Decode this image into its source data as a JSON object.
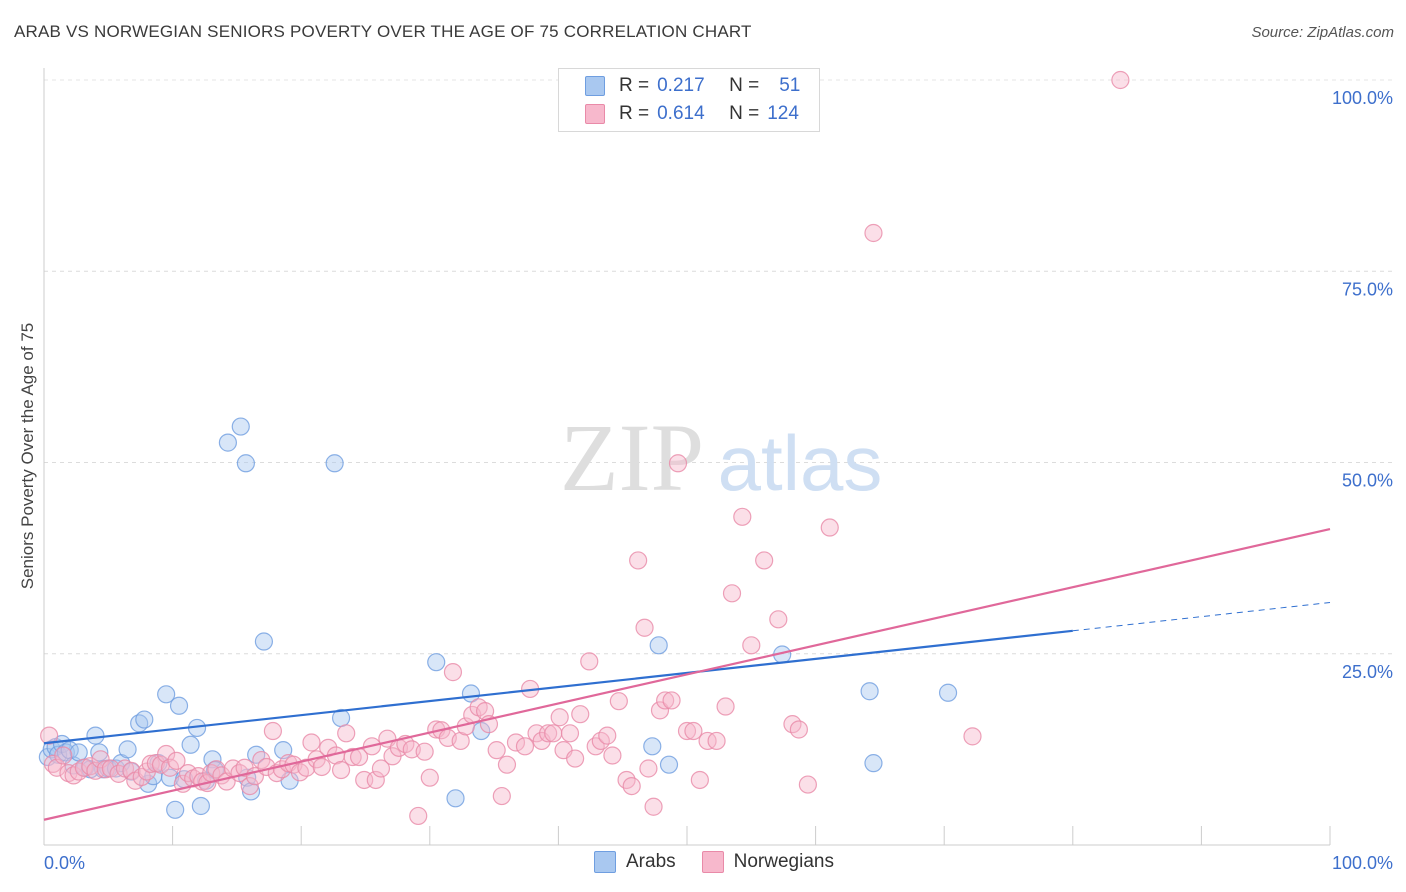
{
  "header": {
    "title": "ARAB VS NORWEGIAN SENIORS POVERTY OVER THE AGE OF 75 CORRELATION CHART",
    "source": "Source: ZipAtlas.com"
  },
  "watermark": {
    "zip": "ZIP",
    "atlas": "atlas"
  },
  "legend": {
    "rows": [
      {
        "r_label": "R =",
        "r_value": "0.217",
        "n_label": "N =",
        "n_value": "51",
        "color": "#a9c8f0",
        "stroke": "#6f9ee0"
      },
      {
        "r_label": "R =",
        "r_value": "0.614",
        "n_label": "N =",
        "n_value": "124",
        "color": "#f7b8cc",
        "stroke": "#e98aa8"
      }
    ]
  },
  "bottom_legend": [
    {
      "label": "Arabs",
      "color": "#a9c8f0",
      "stroke": "#6f9ee0"
    },
    {
      "label": "Norwegians",
      "color": "#f7b8cc",
      "stroke": "#e98aa8"
    }
  ],
  "chart_data": {
    "type": "scatter",
    "title": "ARAB VS NORWEGIAN SENIORS POVERTY OVER THE AGE OF 75 CORRELATION CHART",
    "xlabel": "",
    "ylabel": "Seniors Poverty Over the Age of 75",
    "xlim": [
      0,
      100
    ],
    "ylim": [
      0,
      100
    ],
    "x_tick_labels": [
      "0.0%",
      "100.0%"
    ],
    "y_tick_labels": [
      {
        "value": 25,
        "label": "25.0%"
      },
      {
        "value": 50,
        "label": "50.0%"
      },
      {
        "value": 75,
        "label": "75.0%"
      },
      {
        "value": 100,
        "label": "100.0%"
      }
    ],
    "grid": true,
    "legend_position": "top-center",
    "series": [
      {
        "name": "Arabs",
        "color": "#6f9ee0",
        "fill": "#a9c8f0",
        "trend": {
          "x0": 0,
          "y0": 13.3,
          "x1": 80,
          "y1": 28.0,
          "dash_to_x": 100,
          "dash_to_y": 31.7
        },
        "points": [
          [
            0.3,
            11.5
          ],
          [
            0.6,
            12.5
          ],
          [
            0.9,
            12.8
          ],
          [
            1.1,
            11.8
          ],
          [
            1.4,
            13.2
          ],
          [
            1.7,
            12.1
          ],
          [
            2.0,
            12.4
          ],
          [
            2.3,
            10.4
          ],
          [
            2.7,
            12.1
          ],
          [
            3.2,
            10.1
          ],
          [
            3.6,
            9.9
          ],
          [
            4.0,
            14.3
          ],
          [
            4.3,
            12.1
          ],
          [
            4.6,
            9.9
          ],
          [
            5.0,
            10.0
          ],
          [
            5.6,
            10.0
          ],
          [
            6.0,
            10.7
          ],
          [
            6.5,
            12.5
          ],
          [
            6.8,
            9.6
          ],
          [
            7.4,
            15.9
          ],
          [
            7.8,
            16.4
          ],
          [
            8.1,
            8.0
          ],
          [
            8.5,
            9.0
          ],
          [
            8.9,
            10.7
          ],
          [
            9.5,
            19.7
          ],
          [
            9.8,
            8.8
          ],
          [
            10.2,
            4.6
          ],
          [
            10.5,
            18.2
          ],
          [
            10.9,
            8.6
          ],
          [
            11.4,
            13.1
          ],
          [
            11.9,
            15.3
          ],
          [
            12.2,
            5.1
          ],
          [
            12.6,
            8.4
          ],
          [
            13.1,
            11.2
          ],
          [
            13.3,
            9.8
          ],
          [
            14.3,
            52.6
          ],
          [
            15.3,
            54.7
          ],
          [
            15.7,
            49.9
          ],
          [
            15.8,
            8.8
          ],
          [
            16.1,
            7.0
          ],
          [
            16.5,
            11.8
          ],
          [
            17.1,
            26.6
          ],
          [
            18.6,
            12.4
          ],
          [
            19.1,
            8.4
          ],
          [
            22.6,
            49.9
          ],
          [
            23.1,
            16.6
          ],
          [
            30.5,
            23.9
          ],
          [
            32.0,
            6.1
          ],
          [
            33.2,
            19.8
          ],
          [
            34.0,
            14.9
          ],
          [
            47.3,
            12.9
          ],
          [
            47.8,
            26.1
          ],
          [
            48.6,
            10.5
          ],
          [
            57.4,
            24.9
          ],
          [
            64.2,
            20.1
          ],
          [
            64.5,
            10.7
          ],
          [
            70.3,
            19.9
          ]
        ]
      },
      {
        "name": "Norwegians",
        "color": "#e98aa8",
        "fill": "#f7b8cc",
        "trend": {
          "x0": 0,
          "y0": 3.3,
          "x1": 100,
          "y1": 41.3
        },
        "points": [
          [
            0.4,
            14.3
          ],
          [
            0.7,
            10.6
          ],
          [
            1.0,
            10.1
          ],
          [
            1.5,
            11.7
          ],
          [
            1.9,
            9.4
          ],
          [
            2.3,
            9.1
          ],
          [
            2.7,
            9.6
          ],
          [
            3.1,
            10.1
          ],
          [
            3.6,
            10.3
          ],
          [
            4.0,
            9.7
          ],
          [
            4.4,
            11.2
          ],
          [
            4.8,
            9.9
          ],
          [
            5.2,
            10.0
          ],
          [
            5.8,
            9.3
          ],
          [
            6.3,
            10.0
          ],
          [
            6.8,
            9.7
          ],
          [
            7.1,
            8.4
          ],
          [
            7.6,
            8.9
          ],
          [
            8.0,
            9.6
          ],
          [
            8.3,
            10.6
          ],
          [
            8.7,
            10.7
          ],
          [
            9.1,
            10.5
          ],
          [
            9.5,
            11.9
          ],
          [
            9.8,
            10.1
          ],
          [
            10.3,
            11.0
          ],
          [
            10.8,
            8.0
          ],
          [
            11.2,
            9.4
          ],
          [
            11.6,
            8.7
          ],
          [
            12.0,
            9.0
          ],
          [
            12.3,
            8.3
          ],
          [
            12.7,
            8.1
          ],
          [
            13.0,
            9.4
          ],
          [
            13.4,
            9.9
          ],
          [
            13.8,
            9.1
          ],
          [
            14.2,
            8.3
          ],
          [
            14.7,
            10.0
          ],
          [
            15.2,
            9.4
          ],
          [
            15.6,
            10.1
          ],
          [
            16.0,
            7.7
          ],
          [
            16.4,
            9.0
          ],
          [
            16.9,
            11.1
          ],
          [
            17.3,
            10.2
          ],
          [
            17.8,
            14.9
          ],
          [
            18.1,
            9.4
          ],
          [
            18.5,
            9.9
          ],
          [
            19.0,
            10.7
          ],
          [
            19.4,
            10.5
          ],
          [
            19.9,
            9.5
          ],
          [
            20.4,
            10.1
          ],
          [
            20.8,
            13.4
          ],
          [
            21.2,
            11.2
          ],
          [
            21.6,
            10.2
          ],
          [
            22.1,
            12.7
          ],
          [
            22.7,
            11.7
          ],
          [
            23.1,
            9.8
          ],
          [
            23.5,
            14.6
          ],
          [
            24.0,
            11.5
          ],
          [
            24.5,
            11.5
          ],
          [
            24.9,
            8.5
          ],
          [
            25.5,
            12.9
          ],
          [
            25.8,
            8.5
          ],
          [
            26.2,
            10.0
          ],
          [
            26.7,
            13.9
          ],
          [
            27.1,
            11.6
          ],
          [
            27.6,
            12.7
          ],
          [
            28.1,
            13.2
          ],
          [
            28.6,
            12.5
          ],
          [
            29.1,
            3.8
          ],
          [
            29.6,
            12.2
          ],
          [
            30.0,
            8.8
          ],
          [
            30.5,
            15.1
          ],
          [
            30.9,
            15.0
          ],
          [
            31.4,
            14.0
          ],
          [
            31.8,
            22.6
          ],
          [
            32.4,
            13.6
          ],
          [
            32.8,
            15.5
          ],
          [
            33.3,
            17.0
          ],
          [
            33.8,
            18.0
          ],
          [
            34.3,
            17.5
          ],
          [
            34.6,
            15.8
          ],
          [
            35.2,
            12.4
          ],
          [
            35.6,
            6.4
          ],
          [
            36.0,
            10.5
          ],
          [
            36.7,
            13.4
          ],
          [
            37.4,
            12.9
          ],
          [
            37.8,
            20.4
          ],
          [
            38.3,
            14.6
          ],
          [
            38.7,
            13.6
          ],
          [
            39.2,
            14.6
          ],
          [
            39.6,
            14.6
          ],
          [
            40.1,
            16.7
          ],
          [
            40.4,
            12.4
          ],
          [
            40.9,
            14.6
          ],
          [
            41.3,
            11.3
          ],
          [
            41.7,
            17.1
          ],
          [
            42.4,
            24.0
          ],
          [
            42.9,
            12.9
          ],
          [
            43.3,
            13.6
          ],
          [
            43.8,
            14.3
          ],
          [
            44.2,
            11.7
          ],
          [
            44.7,
            18.8
          ],
          [
            45.3,
            8.5
          ],
          [
            45.7,
            7.7
          ],
          [
            46.2,
            37.2
          ],
          [
            46.7,
            28.4
          ],
          [
            47.0,
            10.0
          ],
          [
            47.4,
            5.0
          ],
          [
            47.9,
            17.6
          ],
          [
            48.3,
            18.9
          ],
          [
            48.8,
            18.9
          ],
          [
            49.3,
            49.9
          ],
          [
            50.0,
            14.9
          ],
          [
            50.5,
            14.9
          ],
          [
            51.0,
            8.5
          ],
          [
            51.6,
            13.6
          ],
          [
            52.3,
            13.6
          ],
          [
            53.0,
            18.1
          ],
          [
            53.5,
            32.9
          ],
          [
            54.3,
            42.9
          ],
          [
            55.0,
            26.1
          ],
          [
            56.0,
            37.2
          ],
          [
            57.1,
            29.5
          ],
          [
            58.2,
            15.8
          ],
          [
            58.7,
            15.1
          ],
          [
            59.4,
            7.9
          ],
          [
            61.1,
            41.5
          ],
          [
            64.5,
            80.0
          ],
          [
            72.2,
            14.2
          ],
          [
            83.7,
            100.0
          ]
        ]
      }
    ]
  }
}
